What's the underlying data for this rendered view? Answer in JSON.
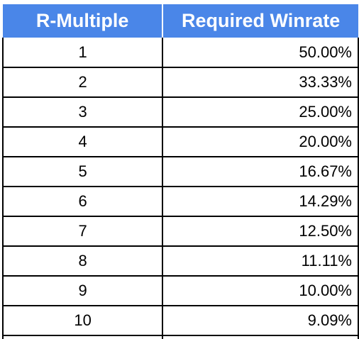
{
  "table": {
    "headers": [
      "R-Multiple",
      "Required Winrate"
    ],
    "rows": [
      [
        "1",
        "50.00%"
      ],
      [
        "2",
        "33.33%"
      ],
      [
        "3",
        "25.00%"
      ],
      [
        "4",
        "20.00%"
      ],
      [
        "5",
        "16.67%"
      ],
      [
        "6",
        "14.29%"
      ],
      [
        "7",
        "12.50%"
      ],
      [
        "8",
        "11.11%"
      ],
      [
        "9",
        "10.00%"
      ],
      [
        "10",
        "9.09%"
      ]
    ]
  },
  "colors": {
    "header_background": "#4a86e8",
    "header_text": "#ffffff",
    "grid_lines": "#000000"
  }
}
